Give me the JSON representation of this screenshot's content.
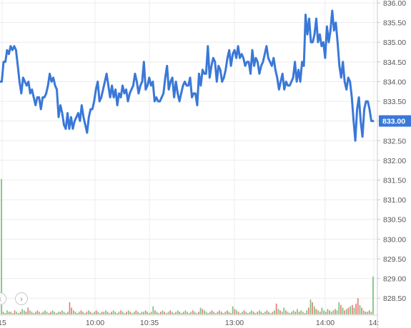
{
  "chart_data": {
    "type": "line",
    "title": "",
    "price_axis": {
      "ylim": [
        828.25,
        836.0
      ],
      "tick_labels": [
        "836.00",
        "835.50",
        "835.00",
        "834.50",
        "834.00",
        "833.50",
        "833.00",
        "832.50",
        "832.00",
        "831.50",
        "831.00",
        "830.50",
        "830.00",
        "829.50",
        "829.00",
        "828.50"
      ],
      "tick_values": [
        836.0,
        835.5,
        835.0,
        834.5,
        834.0,
        833.5,
        833.0,
        832.5,
        832.0,
        831.5,
        831.0,
        830.5,
        830.0,
        829.5,
        829.0,
        828.5
      ]
    },
    "time_axis": {
      "tick_labels": [
        "15",
        "10:00",
        "10:35",
        "13:00",
        "14:00",
        "14:"
      ]
    },
    "last_price_label": "833.00",
    "price_color": "#3a78d8",
    "up_color": "#7cc37c",
    "down_color": "#e77d7d",
    "grid": true,
    "series": [
      {
        "values": [
          834.0,
          834.0,
          834.5,
          834.5,
          834.8,
          834.7,
          834.9,
          834.8,
          834.9,
          834.8,
          834.4,
          834.0,
          833.7,
          834.1,
          834.0,
          833.9,
          834.0,
          833.7,
          833.8,
          833.6,
          833.4,
          833.6,
          833.6,
          833.3,
          833.6,
          833.6,
          833.7,
          833.9,
          834.2,
          834.0,
          834.1,
          833.9,
          833.8,
          833.1,
          833.4,
          833.2,
          832.9,
          832.8,
          833.2,
          832.8,
          833.1,
          832.8,
          833.0,
          833.1,
          833.2,
          833.0,
          833.4,
          833.1,
          832.9,
          832.7,
          833.1,
          833.3,
          833.3,
          833.5,
          833.8,
          834.0,
          833.5,
          833.6,
          833.8,
          834.0,
          834.2,
          833.9,
          833.6,
          833.9,
          833.6,
          833.8,
          833.4,
          833.7,
          833.6,
          833.9,
          833.7,
          833.8,
          833.5,
          833.7,
          833.8,
          833.9,
          834.2,
          834.0,
          833.7,
          833.9,
          834.0,
          834.5,
          833.8,
          833.9,
          834.1,
          833.9,
          834.0,
          833.5,
          833.6,
          833.5,
          833.5,
          833.6,
          833.7,
          834.1,
          834.4,
          833.8,
          834.0,
          834.1,
          833.6,
          834.0,
          833.7,
          833.5,
          833.7,
          833.9,
          834.0,
          833.9,
          833.9,
          834.1,
          833.6,
          833.7,
          833.7,
          833.4,
          834.2,
          833.9,
          834.3,
          834.2,
          834.2,
          834.9,
          834.1,
          834.4,
          834.6,
          834.5,
          834.0,
          834.4,
          834.3,
          834.0,
          834.1,
          834.3,
          834.6,
          834.8,
          834.4,
          834.7,
          834.8,
          834.6,
          834.9,
          834.6,
          834.7,
          834.6,
          834.4,
          834.5,
          834.5,
          834.2,
          834.8,
          834.4,
          834.6,
          834.5,
          834.2,
          834.4,
          834.5,
          834.7,
          834.9,
          834.6,
          834.5,
          834.4,
          834.6,
          834.3,
          834.1,
          833.8,
          834.0,
          834.2,
          833.8,
          834.0,
          833.9,
          833.9,
          834.0,
          834.1,
          834.5,
          834.0,
          834.3,
          834.0,
          834.5,
          834.4,
          835.7,
          835.2,
          835.6,
          835.0,
          835.0,
          835.2,
          835.6,
          835.0,
          835.2,
          834.9,
          835.0,
          834.6,
          835.4,
          835.0,
          835.3,
          835.8,
          835.3,
          835.5,
          835.0,
          834.4,
          834.1,
          834.5,
          834.0,
          833.8,
          834.1,
          834.0,
          833.6,
          833.0,
          832.5,
          833.3,
          833.6,
          833.0,
          832.6,
          833.3,
          833.5,
          833.5,
          833.3,
          833.0,
          833.0
        ]
      }
    ],
    "volume": [
      {
        "value": 1.0,
        "dir": "up"
      },
      {
        "value": 0.02,
        "dir": "up"
      },
      {
        "value": 0.01,
        "dir": "down"
      },
      {
        "value": 0.03,
        "dir": "up"
      },
      {
        "value": 0.02,
        "dir": "down"
      },
      {
        "value": 0.02,
        "dir": "up"
      },
      {
        "value": 0.01,
        "dir": "up"
      },
      {
        "value": 0.03,
        "dir": "down"
      },
      {
        "value": 0.02,
        "dir": "up"
      },
      {
        "value": 0.01,
        "dir": "up"
      },
      {
        "value": 0.02,
        "dir": "down"
      },
      {
        "value": 0.04,
        "dir": "up"
      },
      {
        "value": 0.03,
        "dir": "up"
      },
      {
        "value": 0.02,
        "dir": "down"
      },
      {
        "value": 0.05,
        "dir": "down"
      },
      {
        "value": 0.03,
        "dir": "up"
      },
      {
        "value": 0.02,
        "dir": "up"
      },
      {
        "value": 0.01,
        "dir": "down"
      },
      {
        "value": 0.02,
        "dir": "up"
      },
      {
        "value": 0.03,
        "dir": "down"
      },
      {
        "value": 0.02,
        "dir": "up"
      },
      {
        "value": 0.01,
        "dir": "up"
      },
      {
        "value": 0.02,
        "dir": "down"
      },
      {
        "value": 0.03,
        "dir": "up"
      },
      {
        "value": 0.02,
        "dir": "up"
      },
      {
        "value": 0.01,
        "dir": "down"
      },
      {
        "value": 0.02,
        "dir": "down"
      },
      {
        "value": 0.03,
        "dir": "up"
      },
      {
        "value": 0.02,
        "dir": "up"
      },
      {
        "value": 0.01,
        "dir": "down"
      },
      {
        "value": 0.02,
        "dir": "up"
      },
      {
        "value": 0.02,
        "dir": "down"
      },
      {
        "value": 0.03,
        "dir": "up"
      },
      {
        "value": 0.02,
        "dir": "up"
      },
      {
        "value": 0.01,
        "dir": "down"
      },
      {
        "value": 0.02,
        "dir": "up"
      },
      {
        "value": 0.09,
        "dir": "down"
      },
      {
        "value": 0.05,
        "dir": "down"
      },
      {
        "value": 0.03,
        "dir": "up"
      },
      {
        "value": 0.02,
        "dir": "up"
      },
      {
        "value": 0.01,
        "dir": "down"
      },
      {
        "value": 0.02,
        "dir": "up"
      },
      {
        "value": 0.03,
        "dir": "down"
      },
      {
        "value": 0.02,
        "dir": "up"
      },
      {
        "value": 0.01,
        "dir": "up"
      },
      {
        "value": 0.02,
        "dir": "down"
      },
      {
        "value": 0.03,
        "dir": "up"
      },
      {
        "value": 0.02,
        "dir": "down"
      },
      {
        "value": 0.01,
        "dir": "up"
      },
      {
        "value": 0.02,
        "dir": "up"
      },
      {
        "value": 0.03,
        "dir": "down"
      },
      {
        "value": 0.02,
        "dir": "up"
      },
      {
        "value": 0.01,
        "dir": "up"
      },
      {
        "value": 0.02,
        "dir": "down"
      },
      {
        "value": 0.02,
        "dir": "up"
      },
      {
        "value": 0.03,
        "dir": "up"
      },
      {
        "value": 0.02,
        "dir": "down"
      },
      {
        "value": 0.01,
        "dir": "up"
      },
      {
        "value": 0.02,
        "dir": "down"
      },
      {
        "value": 0.03,
        "dir": "up"
      },
      {
        "value": 0.02,
        "dir": "up"
      },
      {
        "value": 0.01,
        "dir": "down"
      },
      {
        "value": 0.02,
        "dir": "up"
      },
      {
        "value": 0.03,
        "dir": "down"
      },
      {
        "value": 0.02,
        "dir": "up"
      },
      {
        "value": 0.01,
        "dir": "up"
      },
      {
        "value": 0.02,
        "dir": "down"
      },
      {
        "value": 0.03,
        "dir": "up"
      },
      {
        "value": 0.02,
        "dir": "down"
      },
      {
        "value": 0.01,
        "dir": "up"
      },
      {
        "value": 0.02,
        "dir": "up"
      },
      {
        "value": 0.03,
        "dir": "down"
      },
      {
        "value": 0.02,
        "dir": "up"
      },
      {
        "value": 0.01,
        "dir": "down"
      },
      {
        "value": 0.02,
        "dir": "up"
      },
      {
        "value": 0.02,
        "dir": "up"
      },
      {
        "value": 0.03,
        "dir": "down"
      },
      {
        "value": 0.02,
        "dir": "up"
      },
      {
        "value": 0.01,
        "dir": "down"
      },
      {
        "value": 0.02,
        "dir": "up"
      },
      {
        "value": 0.06,
        "dir": "up"
      },
      {
        "value": 0.03,
        "dir": "down"
      },
      {
        "value": 0.02,
        "dir": "up"
      },
      {
        "value": 0.01,
        "dir": "up"
      },
      {
        "value": 0.02,
        "dir": "down"
      },
      {
        "value": 0.03,
        "dir": "up"
      },
      {
        "value": 0.02,
        "dir": "down"
      },
      {
        "value": 0.01,
        "dir": "up"
      },
      {
        "value": 0.02,
        "dir": "up"
      },
      {
        "value": 0.03,
        "dir": "down"
      },
      {
        "value": 0.02,
        "dir": "up"
      },
      {
        "value": 0.01,
        "dir": "down"
      },
      {
        "value": 0.02,
        "dir": "up"
      },
      {
        "value": 0.03,
        "dir": "up"
      },
      {
        "value": 0.02,
        "dir": "down"
      },
      {
        "value": 0.01,
        "dir": "up"
      },
      {
        "value": 0.02,
        "dir": "down"
      },
      {
        "value": 0.03,
        "dir": "up"
      },
      {
        "value": 0.02,
        "dir": "up"
      },
      {
        "value": 0.01,
        "dir": "down"
      },
      {
        "value": 0.02,
        "dir": "up"
      },
      {
        "value": 0.03,
        "dir": "down"
      },
      {
        "value": 0.02,
        "dir": "up"
      },
      {
        "value": 0.01,
        "dir": "up"
      },
      {
        "value": 0.02,
        "dir": "down"
      },
      {
        "value": 0.05,
        "dir": "up"
      },
      {
        "value": 0.04,
        "dir": "down"
      },
      {
        "value": 0.03,
        "dir": "up"
      },
      {
        "value": 0.02,
        "dir": "up"
      },
      {
        "value": 0.01,
        "dir": "down"
      },
      {
        "value": 0.02,
        "dir": "up"
      },
      {
        "value": 0.03,
        "dir": "down"
      },
      {
        "value": 0.02,
        "dir": "up"
      },
      {
        "value": 0.01,
        "dir": "up"
      },
      {
        "value": 0.02,
        "dir": "down"
      },
      {
        "value": 0.03,
        "dir": "up"
      },
      {
        "value": 0.02,
        "dir": "down"
      },
      {
        "value": 0.01,
        "dir": "up"
      },
      {
        "value": 0.02,
        "dir": "up"
      },
      {
        "value": 0.03,
        "dir": "down"
      },
      {
        "value": 0.02,
        "dir": "up"
      },
      {
        "value": 0.01,
        "dir": "down"
      },
      {
        "value": 0.06,
        "dir": "up"
      },
      {
        "value": 0.04,
        "dir": "down"
      },
      {
        "value": 0.03,
        "dir": "up"
      },
      {
        "value": 0.02,
        "dir": "down"
      },
      {
        "value": 0.01,
        "dir": "up"
      },
      {
        "value": 0.02,
        "dir": "up"
      },
      {
        "value": 0.03,
        "dir": "down"
      },
      {
        "value": 0.02,
        "dir": "up"
      },
      {
        "value": 0.01,
        "dir": "down"
      },
      {
        "value": 0.02,
        "dir": "up"
      },
      {
        "value": 0.03,
        "dir": "up"
      },
      {
        "value": 0.02,
        "dir": "down"
      },
      {
        "value": 0.01,
        "dir": "up"
      },
      {
        "value": 0.02,
        "dir": "down"
      },
      {
        "value": 0.03,
        "dir": "up"
      },
      {
        "value": 0.02,
        "dir": "up"
      },
      {
        "value": 0.01,
        "dir": "down"
      },
      {
        "value": 0.02,
        "dir": "up"
      },
      {
        "value": 0.03,
        "dir": "down"
      },
      {
        "value": 0.02,
        "dir": "up"
      },
      {
        "value": 0.01,
        "dir": "up"
      },
      {
        "value": 0.02,
        "dir": "down"
      },
      {
        "value": 0.03,
        "dir": "up"
      },
      {
        "value": 0.08,
        "dir": "down"
      },
      {
        "value": 0.04,
        "dir": "up"
      },
      {
        "value": 0.03,
        "dir": "down"
      },
      {
        "value": 0.02,
        "dir": "up"
      },
      {
        "value": 0.05,
        "dir": "up"
      },
      {
        "value": 0.03,
        "dir": "down"
      },
      {
        "value": 0.02,
        "dir": "up"
      },
      {
        "value": 0.01,
        "dir": "down"
      },
      {
        "value": 0.02,
        "dir": "up"
      },
      {
        "value": 0.03,
        "dir": "up"
      },
      {
        "value": 0.02,
        "dir": "down"
      },
      {
        "value": 0.04,
        "dir": "up"
      },
      {
        "value": 0.02,
        "dir": "down"
      },
      {
        "value": 0.03,
        "dir": "up"
      },
      {
        "value": 0.02,
        "dir": "up"
      },
      {
        "value": 0.01,
        "dir": "down"
      },
      {
        "value": 0.03,
        "dir": "up"
      },
      {
        "value": 0.05,
        "dir": "down"
      },
      {
        "value": 0.11,
        "dir": "up"
      },
      {
        "value": 0.09,
        "dir": "down"
      },
      {
        "value": 0.06,
        "dir": "up"
      },
      {
        "value": 0.04,
        "dir": "down"
      },
      {
        "value": 0.03,
        "dir": "up"
      },
      {
        "value": 0.02,
        "dir": "down"
      },
      {
        "value": 0.05,
        "dir": "up"
      },
      {
        "value": 0.03,
        "dir": "up"
      },
      {
        "value": 0.02,
        "dir": "down"
      },
      {
        "value": 0.04,
        "dir": "up"
      },
      {
        "value": 0.03,
        "dir": "down"
      },
      {
        "value": 0.02,
        "dir": "up"
      },
      {
        "value": 0.03,
        "dir": "up"
      },
      {
        "value": 0.04,
        "dir": "down"
      },
      {
        "value": 0.03,
        "dir": "up"
      },
      {
        "value": 0.09,
        "dir": "up"
      },
      {
        "value": 0.07,
        "dir": "down"
      },
      {
        "value": 0.05,
        "dir": "up"
      },
      {
        "value": 0.03,
        "dir": "down"
      },
      {
        "value": 0.04,
        "dir": "up"
      },
      {
        "value": 0.05,
        "dir": "down"
      },
      {
        "value": 0.06,
        "dir": "up"
      },
      {
        "value": 0.07,
        "dir": "down"
      },
      {
        "value": 0.05,
        "dir": "up"
      },
      {
        "value": 0.08,
        "dir": "down"
      },
      {
        "value": 0.12,
        "dir": "down"
      },
      {
        "value": 0.07,
        "dir": "up"
      },
      {
        "value": 0.05,
        "dir": "down"
      },
      {
        "value": 0.03,
        "dir": "up"
      },
      {
        "value": 0.02,
        "dir": "down"
      },
      {
        "value": 0.02,
        "dir": "up"
      },
      {
        "value": 0.03,
        "dir": "down"
      },
      {
        "value": 0.02,
        "dir": "up"
      },
      {
        "value": 0.28,
        "dir": "up"
      }
    ],
    "nav_prev": "‹",
    "nav_next": "›"
  }
}
